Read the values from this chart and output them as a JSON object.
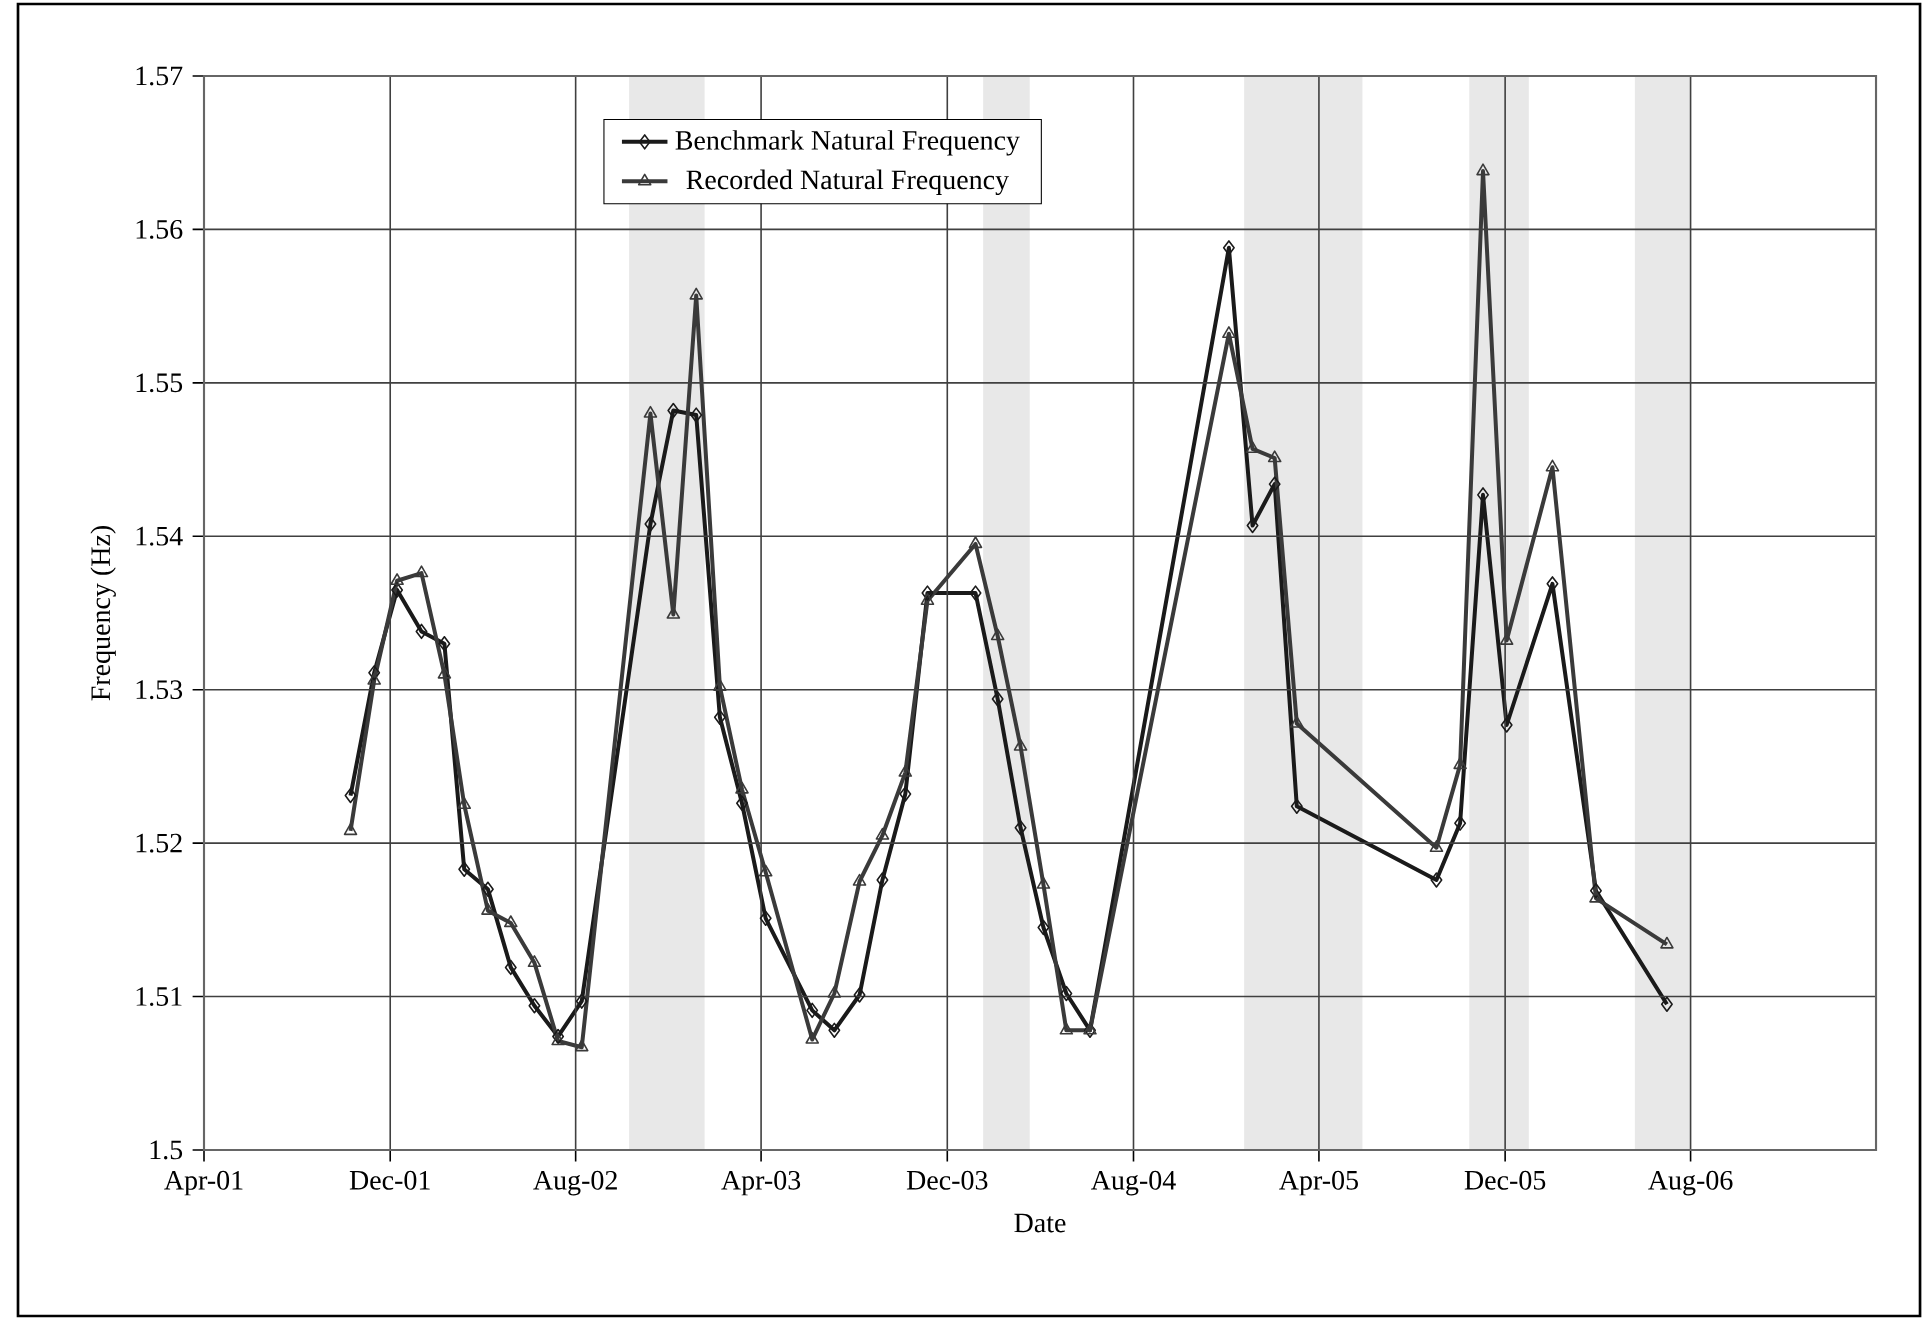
{
  "chart_data": {
    "type": "line",
    "xlabel": "Date",
    "ylabel": "Frequency (Hz)",
    "x": [
      "2001-10-10",
      "2001-11-10",
      "2001-12-10",
      "2002-01-11",
      "2002-02-10",
      "2002-03-08",
      "2002-04-08",
      "2002-05-08",
      "2002-06-08",
      "2002-07-09",
      "2002-08-09",
      "2002-11-07",
      "2002-12-07",
      "2003-01-06",
      "2003-02-06",
      "2003-03-07",
      "2003-04-07",
      "2003-06-07",
      "2003-07-06",
      "2003-08-08",
      "2003-09-07",
      "2003-10-07",
      "2003-11-05",
      "2004-01-07",
      "2004-02-05",
      "2004-03-06",
      "2004-04-05",
      "2004-05-05",
      "2004-06-05",
      "2004-12-04",
      "2005-01-04",
      "2005-02-02",
      "2005-03-03",
      "2005-09-02",
      "2005-10-03",
      "2005-11-02",
      "2005-12-03",
      "2006-02-01",
      "2006-03-30",
      "2006-07-01"
    ],
    "series": [
      {
        "name": "Benchmark Natural Frequency",
        "color": "#1a1a1a",
        "marker": "diamond",
        "values": [
          1.5231,
          1.5311,
          1.5365,
          1.5338,
          1.533,
          1.5183,
          1.517,
          1.5119,
          1.5094,
          1.5074,
          1.5097,
          1.5408,
          1.5482,
          1.5479,
          1.5282,
          1.5226,
          1.5151,
          1.5091,
          1.5078,
          1.5101,
          1.5176,
          1.5232,
          1.5363,
          1.5363,
          1.5294,
          1.521,
          1.5145,
          1.5102,
          1.5078,
          1.5588,
          1.5407,
          1.5434,
          1.5224,
          1.5176,
          1.5213,
          1.5427,
          1.5277,
          1.5369,
          1.5169,
          1.5095
        ]
      },
      {
        "name": "Recorded Natural Frequency",
        "color": "#3a3a3a",
        "marker": "triangle",
        "values": [
          1.5208,
          1.5306,
          1.5371,
          1.5376,
          1.531,
          1.5225,
          1.5156,
          1.5148,
          1.5122,
          1.5071,
          1.5067,
          1.548,
          1.5349,
          1.5557,
          1.5302,
          1.5235,
          1.5181,
          1.5072,
          1.5102,
          1.5175,
          1.5205,
          1.5246,
          1.5358,
          1.5395,
          1.5335,
          1.5263,
          1.5173,
          1.5078,
          1.5078,
          1.5532,
          1.5457,
          1.5451,
          1.5278,
          1.5197,
          1.5251,
          1.5638,
          1.5332,
          1.5445,
          1.5164,
          1.5134
        ]
      }
    ],
    "xlim": [
      "2001-04-01",
      "2007-04-01"
    ],
    "xticks": [
      {
        "value": "2001-04-01",
        "label": "Apr-01"
      },
      {
        "value": "2001-12-01",
        "label": "Dec-01"
      },
      {
        "value": "2002-08-01",
        "label": "Aug-02"
      },
      {
        "value": "2003-04-01",
        "label": "Apr-03"
      },
      {
        "value": "2003-12-01",
        "label": "Dec-03"
      },
      {
        "value": "2004-08-01",
        "label": "Aug-04"
      },
      {
        "value": "2005-04-01",
        "label": "Apr-05"
      },
      {
        "value": "2005-12-01",
        "label": "Dec-05"
      },
      {
        "value": "2006-08-01",
        "label": "Aug-06"
      }
    ],
    "ylim": [
      1.5,
      1.57
    ],
    "yticks": [
      1.5,
      1.51,
      1.52,
      1.53,
      1.54,
      1.55,
      1.56,
      1.57
    ],
    "bands": [
      {
        "axis": "x",
        "from": "2002-10-10",
        "to": "2003-01-17",
        "color": "#e8e8e8"
      },
      {
        "axis": "x",
        "from": "2004-01-17",
        "to": "2004-03-18",
        "color": "#e8e8e8"
      },
      {
        "axis": "x",
        "from": "2004-12-24",
        "to": "2005-05-28",
        "color": "#e8e8e8"
      },
      {
        "axis": "x",
        "from": "2005-10-15",
        "to": "2006-01-01",
        "color": "#e8e8e8"
      },
      {
        "axis": "x",
        "from": "2006-05-20",
        "to": "2006-08-01",
        "color": "#e8e8e8"
      }
    ],
    "grid": true,
    "legend": "top",
    "line_style": "solid"
  }
}
